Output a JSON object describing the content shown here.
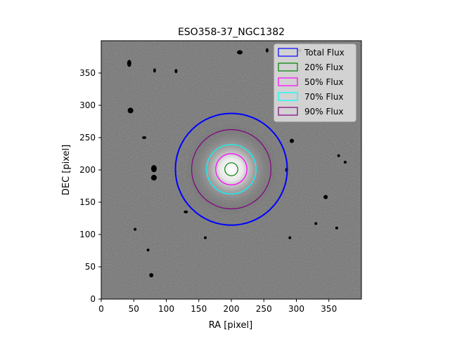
{
  "chart_data": {
    "type": "scatter",
    "title": "ESO358-37_NGC1382",
    "xlabel": "RA [pixel]",
    "ylabel": "DEC [pixel]",
    "xlim": [
      0,
      400
    ],
    "ylim": [
      0,
      400
    ],
    "xticks": [
      0,
      50,
      100,
      150,
      200,
      250,
      300,
      350
    ],
    "yticks": [
      0,
      50,
      100,
      150,
      200,
      250,
      300,
      350
    ],
    "grid": false,
    "legend_position": "top-right",
    "background": "grayscale galaxy image, dark noisy field with bright central source",
    "center": {
      "x": 200,
      "y": 201
    },
    "series": [
      {
        "name": "Total Flux",
        "radius": 86,
        "color": "#0000ff"
      },
      {
        "name": "20% Flux",
        "radius": 10,
        "color": "#008000"
      },
      {
        "name": "50% Flux",
        "radius": 24,
        "color": "#ff00ff"
      },
      {
        "name": "70% Flux",
        "radius": 38,
        "color": "#00ffff"
      },
      {
        "name": "90% Flux",
        "radius": 61,
        "color": "#800080"
      }
    ]
  }
}
